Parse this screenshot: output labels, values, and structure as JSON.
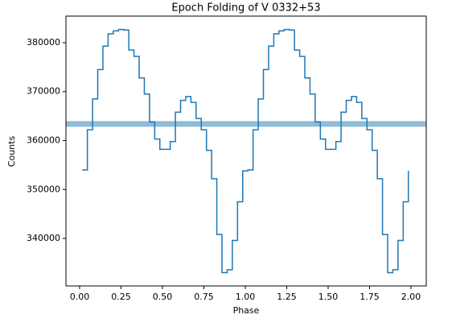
{
  "chart_data": {
    "type": "step",
    "title": "Epoch Folding of V 0332+53",
    "xlabel": "Phase",
    "ylabel": "Counts",
    "x": [
      0.015625,
      0.046875,
      0.078125,
      0.109375,
      0.140625,
      0.171875,
      0.203125,
      0.234375,
      0.265625,
      0.296875,
      0.328125,
      0.359375,
      0.390625,
      0.421875,
      0.453125,
      0.484375,
      0.515625,
      0.546875,
      0.578125,
      0.609375,
      0.640625,
      0.671875,
      0.703125,
      0.734375,
      0.765625,
      0.796875,
      0.828125,
      0.859375,
      0.890625,
      0.921875,
      0.953125,
      0.984375,
      1.015625,
      1.046875,
      1.078125,
      1.109375,
      1.140625,
      1.171875,
      1.203125,
      1.234375,
      1.265625,
      1.296875,
      1.328125,
      1.359375,
      1.390625,
      1.421875,
      1.453125,
      1.484375,
      1.515625,
      1.546875,
      1.578125,
      1.609375,
      1.640625,
      1.671875,
      1.703125,
      1.734375,
      1.765625,
      1.796875,
      1.828125,
      1.859375,
      1.890625,
      1.921875,
      1.953125,
      1.984375
    ],
    "series": [
      {
        "color": "#1f77b4",
        "values": [
          354000,
          362200,
          368500,
          374500,
          379300,
          381800,
          382400,
          382700,
          382600,
          378500,
          377200,
          372800,
          369500,
          363800,
          360300,
          358200,
          358200,
          359800,
          365800,
          368200,
          369000,
          367800,
          364500,
          362200,
          358000,
          352200,
          340800,
          333000,
          333600,
          339600,
          347500,
          353800,
          354000,
          362200,
          368500,
          374500,
          379300,
          381800,
          382400,
          382700,
          382600,
          378500,
          377200,
          372800,
          369500,
          363800,
          360300,
          358200,
          358200,
          359800,
          365800,
          368200,
          369000,
          367800,
          364500,
          362200,
          358000,
          352200,
          340800,
          333000,
          333600,
          339600,
          347500,
          353800
        ]
      }
    ],
    "reference_line": {
      "value": 363400,
      "color": "#1f77b4"
    },
    "xlim": [
      -0.0825,
      2.0922
    ],
    "ylim": [
      330290,
      385430
    ],
    "xticks": [
      {
        "value": 0,
        "label": "0.00"
      },
      {
        "value": 0.25,
        "label": "0.25"
      },
      {
        "value": 0.5,
        "label": "0.50"
      },
      {
        "value": 0.75,
        "label": "0.75"
      },
      {
        "value": 1,
        "label": "1.00"
      },
      {
        "value": 1.25,
        "label": "1.25"
      },
      {
        "value": 1.5,
        "label": "1.50"
      },
      {
        "value": 1.75,
        "label": "1.75"
      },
      {
        "value": 2,
        "label": "2.00"
      }
    ],
    "yticks": [
      340000,
      350000,
      360000,
      370000,
      380000
    ]
  }
}
